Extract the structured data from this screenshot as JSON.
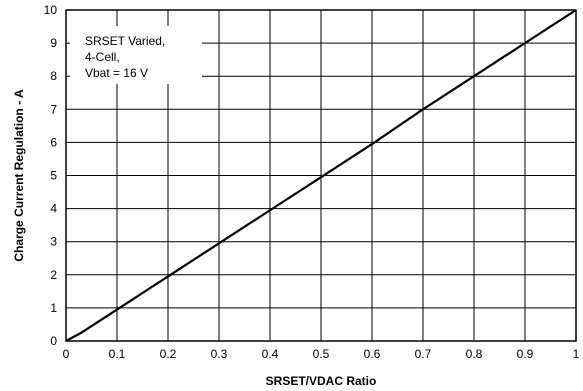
{
  "chart_data": {
    "type": "line",
    "title": "",
    "xlabel": "SRSET/VDAC Ratio",
    "ylabel": "Charge Current Regulation - A",
    "xlim": [
      0,
      1
    ],
    "ylim": [
      0,
      10
    ],
    "grid": true,
    "x_ticks": [
      "0",
      "0.1",
      "0.2",
      "0.3",
      "0.4",
      "0.5",
      "0.6",
      "0.7",
      "0.8",
      "0.9",
      "1"
    ],
    "y_ticks": [
      "0",
      "1",
      "2",
      "3",
      "4",
      "5",
      "6",
      "7",
      "8",
      "9",
      "10"
    ],
    "annotation": [
      "SRSET Varied,",
      "4-Cell,",
      "Vbat = 16 V"
    ],
    "series": [
      {
        "color": "#000000",
        "x": [
          0,
          0.03,
          0.1,
          0.2,
          0.3,
          0.4,
          0.5,
          0.6,
          0.7,
          0.8,
          0.9,
          1.0
        ],
        "y": [
          0,
          0.25,
          0.95,
          1.95,
          2.95,
          3.95,
          4.95,
          5.95,
          7.0,
          8.0,
          9.0,
          10.0
        ]
      }
    ]
  }
}
